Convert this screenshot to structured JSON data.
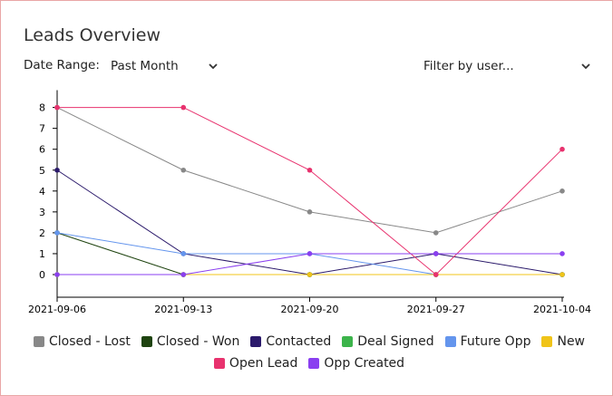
{
  "widget": {
    "title": "Leads Overview"
  },
  "filters": {
    "date_range_label": "Date Range:",
    "date_range_value": "Past Month",
    "user_filter_value": "Filter by user..."
  },
  "chart_data": {
    "type": "line",
    "title": "",
    "xlabel": "",
    "ylabel": "",
    "ylim": [
      -1,
      9
    ],
    "yticks": [
      0,
      1,
      2,
      3,
      4,
      5,
      6,
      7,
      8
    ],
    "categories": [
      "2021-09-06",
      "2021-09-13",
      "2021-09-20",
      "2021-09-27",
      "2021-10-04"
    ],
    "grid": false,
    "legend_position": "bottom",
    "series": [
      {
        "name": "Closed - Lost",
        "color": "#888888",
        "values": [
          8,
          5,
          3,
          2,
          4
        ]
      },
      {
        "name": "Closed - Won",
        "color": "#1f4410",
        "values": [
          2,
          0,
          0,
          0,
          0
        ]
      },
      {
        "name": "Contacted",
        "color": "#2b1a6b",
        "values": [
          5,
          1,
          0,
          1,
          0
        ]
      },
      {
        "name": "Deal Signed",
        "color": "#3cb44b",
        "values": [
          0,
          0,
          0,
          0,
          0
        ]
      },
      {
        "name": "Future Opp",
        "color": "#6495ed",
        "values": [
          2,
          1,
          1,
          0,
          0
        ]
      },
      {
        "name": "New",
        "color": "#f0c419",
        "values": [
          0,
          0,
          0,
          0,
          0
        ]
      },
      {
        "name": "Open Lead",
        "color": "#e8326e",
        "values": [
          8,
          8,
          5,
          0,
          6
        ]
      },
      {
        "name": "Opp Created",
        "color": "#8a3ff0",
        "values": [
          0,
          0,
          1,
          1,
          1
        ]
      }
    ]
  }
}
